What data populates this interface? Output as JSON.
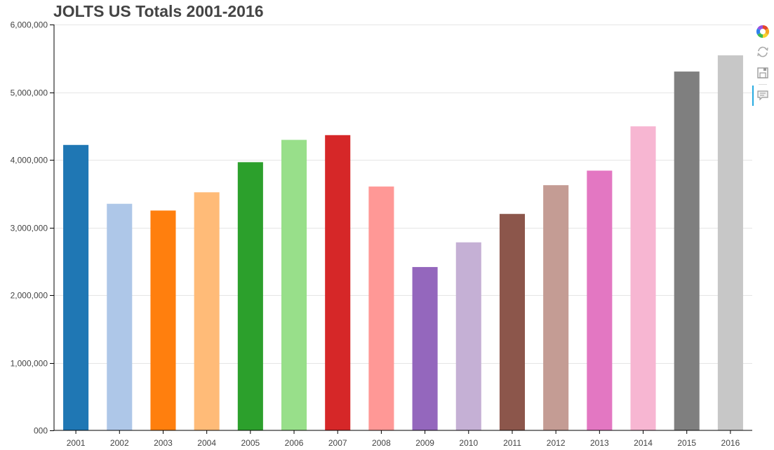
{
  "chart_data": {
    "type": "bar",
    "title": "JOLTS US Totals 2001-2016",
    "categories": [
      "2001",
      "2002",
      "2003",
      "2004",
      "2005",
      "2006",
      "2007",
      "2008",
      "2009",
      "2010",
      "2011",
      "2012",
      "2013",
      "2014",
      "2015",
      "2016"
    ],
    "values": [
      4220000,
      3350000,
      3250000,
      3520000,
      3965000,
      4295000,
      4365000,
      3605000,
      2415000,
      2780000,
      3200000,
      3625000,
      3840000,
      4495000,
      5305000,
      5545000
    ],
    "colors": [
      "#1f77b4",
      "#aec7e8",
      "#ff7f0e",
      "#ffbb78",
      "#2ca02c",
      "#98df8a",
      "#d62728",
      "#ff9896",
      "#9467bd",
      "#c5b0d5",
      "#8c564b",
      "#c49c94",
      "#e377c2",
      "#f7b6d2",
      "#7f7f7f",
      "#c7c7c7"
    ],
    "ylim": [
      0,
      6000000
    ],
    "yticks": [
      0,
      1000000,
      2000000,
      3000000,
      4000000,
      5000000,
      6000000
    ],
    "ytick_labels": [
      "000",
      "1,000,000",
      "2,000,000",
      "3,000,000",
      "4,000,000",
      "5,000,000",
      "6,000,000"
    ],
    "xlabel": "",
    "ylabel": "",
    "grid": true,
    "legend": "none"
  },
  "toolbar": {
    "tools": [
      {
        "name": "bokeh-logo-icon"
      },
      {
        "name": "reset-icon"
      },
      {
        "name": "save-icon"
      },
      {
        "name": "hover-icon"
      }
    ]
  }
}
